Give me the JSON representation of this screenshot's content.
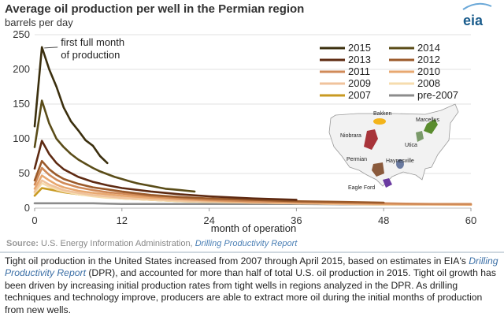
{
  "chart_data": {
    "type": "line",
    "title": "Average oil production per well in the Permian region",
    "ylabel": "barrels per day",
    "xlabel": "month of operation",
    "xlim": [
      0,
      60
    ],
    "ylim": [
      0,
      250
    ],
    "xticks": [
      0,
      12,
      24,
      36,
      48,
      60
    ],
    "yticks": [
      0,
      50,
      100,
      150,
      200,
      250
    ],
    "grid": true,
    "annotation": [
      "first full month",
      "of production"
    ],
    "legend": {
      "placement": "top-right",
      "entries": [
        "2015",
        "2014",
        "2013",
        "2012",
        "2011",
        "2010",
        "2009",
        "2008",
        "2007",
        "pre-2007"
      ]
    },
    "series": [
      {
        "name": "2015",
        "color": "#3b2f0e",
        "x": [
          0,
          1,
          2,
          3,
          4,
          5,
          6,
          7,
          8,
          9,
          10
        ],
        "y": [
          118,
          232,
          200,
          175,
          145,
          125,
          112,
          98,
          90,
          75,
          65
        ]
      },
      {
        "name": "2014",
        "color": "#5a4c18",
        "x": [
          0,
          1,
          2,
          3,
          4,
          5,
          6,
          7,
          8,
          9,
          10,
          11,
          12,
          13,
          14,
          15,
          16,
          17,
          18,
          19,
          20,
          21,
          22
        ],
        "y": [
          88,
          155,
          122,
          100,
          88,
          78,
          70,
          64,
          58,
          53,
          49,
          45,
          42,
          39,
          36,
          34,
          32,
          30,
          28,
          27,
          26,
          25,
          24
        ]
      },
      {
        "name": "2013",
        "color": "#5e2a12",
        "x": [
          0,
          1,
          2,
          3,
          4,
          6,
          8,
          10,
          12,
          16,
          20,
          24,
          30,
          36
        ],
        "y": [
          57,
          97,
          78,
          65,
          56,
          45,
          38,
          33,
          29,
          24,
          20,
          17,
          14,
          12
        ]
      },
      {
        "name": "2012",
        "color": "#9b5a2a",
        "x": [
          0,
          1,
          2,
          3,
          4,
          6,
          8,
          10,
          12,
          16,
          20,
          24,
          30,
          36,
          42,
          48
        ],
        "y": [
          40,
          68,
          56,
          48,
          42,
          35,
          30,
          27,
          24,
          19,
          16,
          14,
          12,
          10,
          9,
          8
        ]
      },
      {
        "name": "2011",
        "color": "#d08a58",
        "x": [
          0,
          1,
          2,
          3,
          4,
          6,
          8,
          10,
          12,
          16,
          20,
          24,
          30,
          36,
          42,
          48,
          54,
          60
        ],
        "y": [
          34,
          58,
          48,
          41,
          36,
          30,
          26,
          23,
          21,
          17,
          14,
          12,
          10,
          9,
          8,
          7,
          6,
          6
        ]
      },
      {
        "name": "2010",
        "color": "#e8a870",
        "x": [
          0,
          1,
          2,
          3,
          4,
          6,
          8,
          10,
          12,
          16,
          20,
          24,
          30,
          36,
          42,
          48,
          54,
          60
        ],
        "y": [
          28,
          47,
          40,
          34,
          30,
          25,
          22,
          20,
          18,
          15,
          13,
          11,
          9,
          8,
          7,
          6,
          6,
          5
        ]
      },
      {
        "name": "2009",
        "color": "#f0c39c",
        "x": [
          0,
          1,
          2,
          3,
          4,
          6,
          8,
          10,
          12,
          16,
          20,
          24,
          30,
          36,
          42,
          48,
          54,
          60
        ],
        "y": [
          24,
          40,
          34,
          30,
          26,
          22,
          19,
          17,
          15,
          13,
          11,
          10,
          8,
          7,
          6,
          6,
          5,
          5
        ]
      },
      {
        "name": "2008",
        "color": "#f6dcae",
        "x": [
          0,
          1,
          2,
          3,
          4,
          6,
          8,
          10,
          12,
          16,
          20,
          24,
          30,
          36,
          42,
          48,
          54,
          60
        ],
        "y": [
          22,
          36,
          31,
          27,
          24,
          20,
          17,
          15,
          14,
          12,
          10,
          9,
          8,
          7,
          6,
          5,
          5,
          5
        ]
      },
      {
        "name": "2007",
        "color": "#c89a22",
        "x": [
          0,
          1,
          2,
          3,
          4,
          6,
          8,
          10,
          12,
          16,
          20,
          24,
          30,
          36,
          42,
          48,
          54,
          60
        ],
        "y": [
          18,
          29,
          27,
          25,
          23,
          20,
          18,
          16,
          14,
          12,
          10,
          9,
          8,
          7,
          6,
          6,
          5,
          5
        ]
      },
      {
        "name": "pre-2007",
        "color": "#8c8c8c",
        "x": [
          0,
          2,
          4,
          8,
          12,
          24,
          36,
          48,
          60
        ],
        "y": [
          7,
          7,
          7,
          7,
          6,
          6,
          6,
          5,
          5
        ]
      }
    ],
    "inset_map": {
      "regions": [
        {
          "name": "Bakken",
          "color": "#f3b41b"
        },
        {
          "name": "Marcellus",
          "color": "#5a8c2e"
        },
        {
          "name": "Niobrara",
          "color": "#a8343a"
        },
        {
          "name": "Utica",
          "color": "#7a9a6a"
        },
        {
          "name": "Permian",
          "color": "#8a5a3c"
        },
        {
          "name": "Haynesville",
          "color": "#6a7aa0"
        },
        {
          "name": "Eagle Ford",
          "color": "#6a3aa0"
        }
      ]
    }
  },
  "logo": {
    "text": "eia",
    "color": "#1a5c8c"
  },
  "source": {
    "label": "Source:",
    "text": "U.S. Energy Information Administration,",
    "link": "Drilling Productivity Report"
  },
  "caption": {
    "part1": "Tight oil production in the United States increased from 2007 through April 2015, based on estimates in EIA's ",
    "link": "Drilling Productivity Report",
    "part2": " (DPR), and accounted for more than half of total U.S. oil production in 2015. Tight oil growth has been driven by increasing initial production rates from tight wells in regions analyzed in the DPR. As drilling techniques and technology improve, producers are able to extract more oil during the initial months of production from new wells."
  }
}
